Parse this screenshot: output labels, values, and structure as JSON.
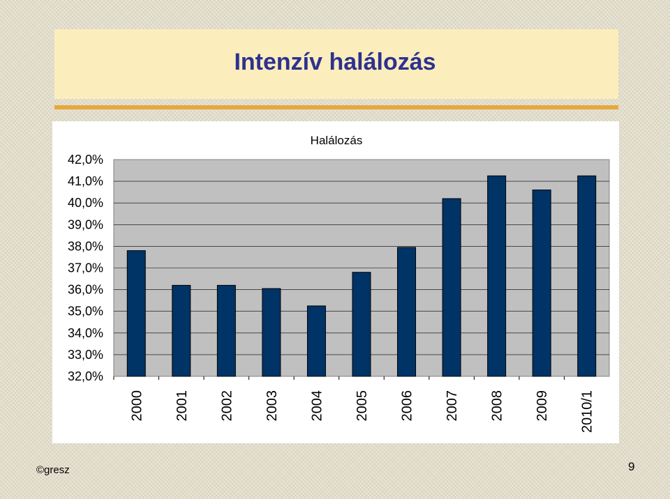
{
  "slide": {
    "title": "Intenzív halálozás",
    "footer_left": "©gresz",
    "page_number": "9"
  },
  "colors": {
    "bar": "#003366",
    "plot_area": "#c0c0c0",
    "title_text": "#2e3190",
    "title_box": "#fbeebc",
    "title_rule": "#e7a83a"
  },
  "chart_data": {
    "type": "bar",
    "title": "Halálozás",
    "categories": [
      "2000",
      "2001",
      "2002",
      "2003",
      "2004",
      "2005",
      "2006",
      "2007",
      "2008",
      "2009",
      "2010/1"
    ],
    "series": [
      {
        "values": [
          37.8,
          36.2,
          36.2,
          36.05,
          35.25,
          36.8,
          37.95,
          40.2,
          41.25,
          40.6,
          41.25
        ]
      }
    ],
    "ylim": [
      32,
      42
    ],
    "yticks": [
      "32,0%",
      "33,0%",
      "34,0%",
      "35,0%",
      "36,0%",
      "37,0%",
      "38,0%",
      "39,0%",
      "40,0%",
      "41,0%",
      "42,0%"
    ],
    "xlabel": "",
    "ylabel": "",
    "grid": true,
    "legend": "none"
  }
}
